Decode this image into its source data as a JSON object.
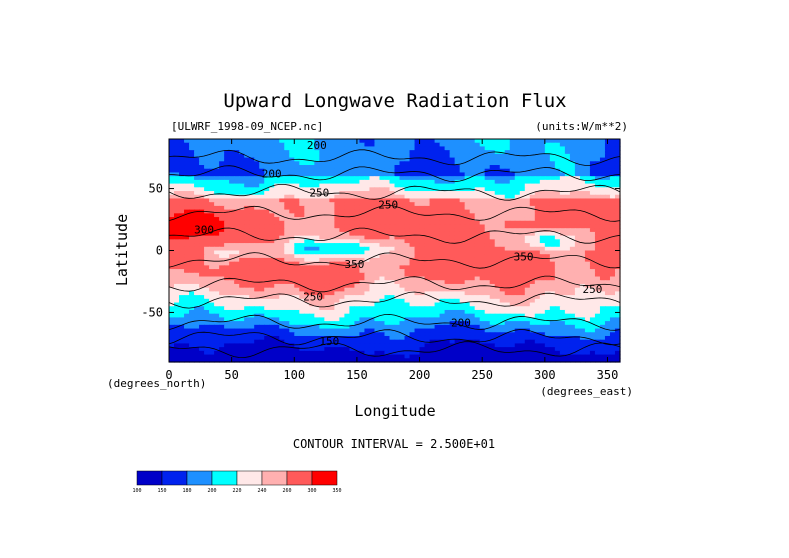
{
  "chart_data": {
    "type": "heatmap",
    "title": "Upward Longwave Radiation Flux",
    "file_label": "[ULWRF_1998-09_NCEP.nc]",
    "units_label": "(units:W/m**2)",
    "xlabel": "Longitude",
    "ylabel": "Latitude",
    "x_unit_label": "(degrees_east)",
    "y_unit_label": "(degrees_north)",
    "xlim": [
      0,
      360
    ],
    "ylim": [
      -90,
      90
    ],
    "x_ticks": [
      0,
      50,
      100,
      150,
      200,
      250,
      300,
      350
    ],
    "y_ticks": [
      50,
      0,
      -50
    ],
    "contour_interval_text": "CONTOUR INTERVAL = 2.500E+01",
    "colorbar": {
      "levels": [
        "100",
        "150",
        "180",
        "200",
        "220",
        "240",
        "260",
        "300",
        "350"
      ],
      "colors": [
        "#0000c8",
        "#0022ee",
        "#1e90ff",
        "#00ffff",
        "#ffe8e8",
        "#ffb0b0",
        "#ff5a5a",
        "#ff0000"
      ]
    },
    "contour_labels": [
      {
        "lon": 118,
        "lat": 85,
        "text": "200"
      },
      {
        "lon": 82,
        "lat": 62,
        "text": "200"
      },
      {
        "lon": 120,
        "lat": 47,
        "text": "250"
      },
      {
        "lon": 175,
        "lat": 37,
        "text": "250"
      },
      {
        "lon": 28,
        "lat": 17,
        "text": "300"
      },
      {
        "lon": 148,
        "lat": -11,
        "text": "350"
      },
      {
        "lon": 283,
        "lat": -5,
        "text": "350"
      },
      {
        "lon": 115,
        "lat": -37,
        "text": "250"
      },
      {
        "lon": 338,
        "lat": -31,
        "text": "250"
      },
      {
        "lon": 233,
        "lat": -58,
        "text": "200"
      },
      {
        "lon": 128,
        "lat": -73,
        "text": "150"
      }
    ]
  }
}
